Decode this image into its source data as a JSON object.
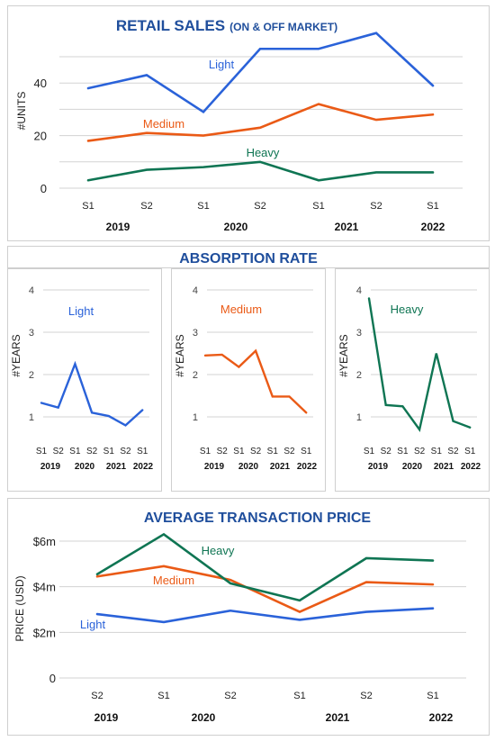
{
  "colors": {
    "light": "#2a62d9",
    "medium": "#ea5a16",
    "heavy": "#0f7553",
    "title": "#1f4e9c"
  },
  "chart_data": [
    {
      "type": "line",
      "title": "RETAIL SALES",
      "title_suffix": "(ON & OFF MARKET)",
      "ylabel": "#UNITS",
      "ylim": [
        0,
        50
      ],
      "yticks": [
        0,
        20,
        40
      ],
      "categories": [
        "S1",
        "S2",
        "S1",
        "S2",
        "S1",
        "S2",
        "S1"
      ],
      "years": [
        "2019",
        "2020",
        "2021",
        "2022"
      ],
      "grid": true,
      "series": [
        {
          "name": "Light",
          "values": [
            38,
            43,
            29,
            53,
            53,
            59,
            39
          ]
        },
        {
          "name": "Medium",
          "values": [
            18,
            21,
            20,
            23,
            32,
            26,
            28
          ]
        },
        {
          "name": "Heavy",
          "values": [
            3,
            7,
            8,
            10,
            3,
            6,
            6
          ]
        }
      ]
    },
    {
      "type": "line",
      "title": "ABSORPTION RATE",
      "ylabel": "#YEARS",
      "ylim": [
        0,
        4
      ],
      "yticks": [
        1,
        2,
        3,
        4
      ],
      "categories": [
        "S1",
        "S2",
        "S1",
        "S2",
        "S1",
        "S2",
        "S1"
      ],
      "years": [
        "2019",
        "2020",
        "2021",
        "2022"
      ],
      "panels": [
        {
          "name": "Light",
          "values": [
            1.33,
            1.22,
            2.25,
            1.1,
            1.02,
            0.8,
            1.16
          ]
        },
        {
          "name": "Medium",
          "values": [
            2.45,
            2.47,
            2.18,
            2.56,
            1.48,
            1.48,
            1.1
          ]
        },
        {
          "name": "Heavy",
          "values": [
            3.8,
            1.28,
            1.25,
            0.7,
            2.5,
            0.9,
            0.75
          ]
        }
      ]
    },
    {
      "type": "line",
      "title": "AVERAGE TRANSACTION PRICE",
      "ylabel": "PRICE (USD)",
      "ylim": [
        0,
        6.5
      ],
      "yticks": [
        0,
        2,
        4,
        6
      ],
      "ytick_labels": [
        "0",
        "$2m",
        "$4m",
        "$6m"
      ],
      "categories": [
        "S2",
        "S1",
        "S2",
        "S1",
        "S2",
        "S1"
      ],
      "years": [
        "2019",
        "2020",
        "2021",
        "2022"
      ],
      "grid": true,
      "series": [
        {
          "name": "Light",
          "values": [
            2.8,
            2.45,
            2.95,
            2.55,
            2.9,
            3.05
          ]
        },
        {
          "name": "Medium",
          "values": [
            4.45,
            4.9,
            4.3,
            2.9,
            4.2,
            4.1
          ]
        },
        {
          "name": "Heavy",
          "values": [
            4.55,
            6.3,
            4.15,
            3.4,
            5.25,
            5.15
          ]
        }
      ]
    }
  ]
}
